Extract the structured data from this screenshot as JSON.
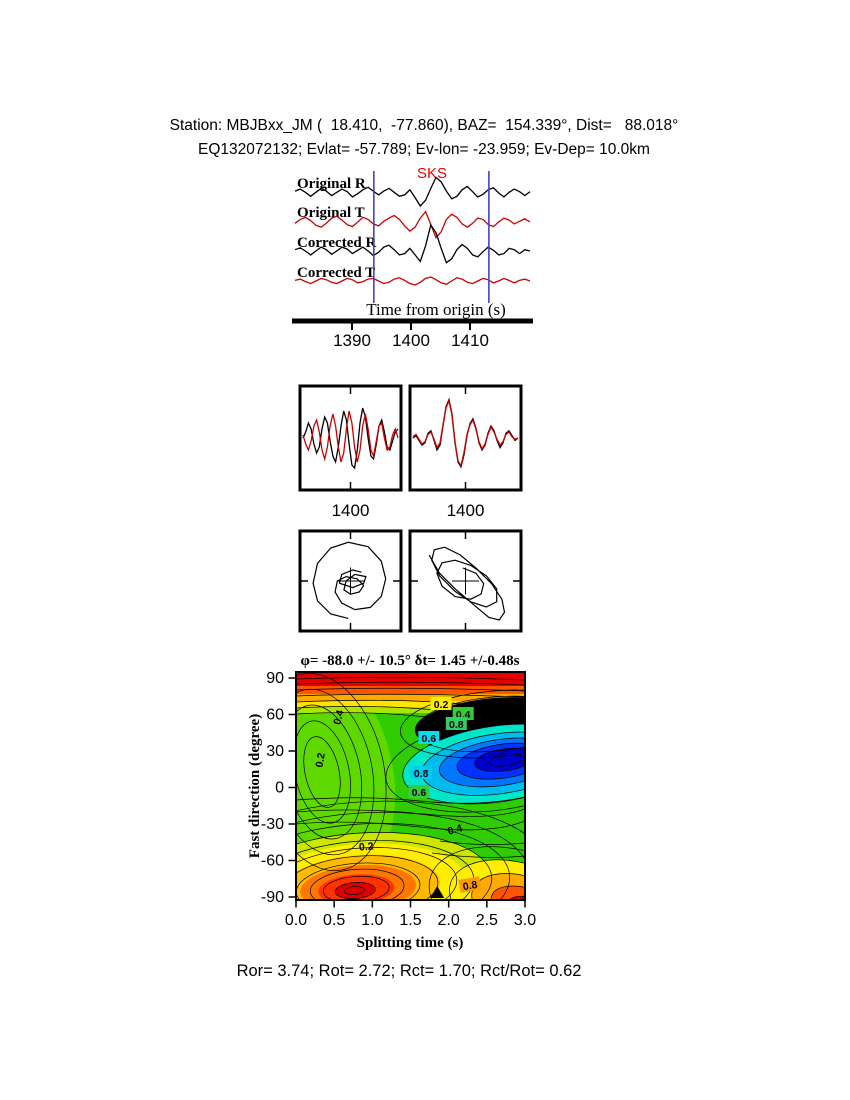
{
  "header": {
    "line1": "Station: MBJBxx_JM (  18.410,  -77.860), BAZ=  154.339°, Dist=   88.018°",
    "line2": "EQ132072132; Evlat= -57.789; Ev-lon= -23.959; Ev-Dep= 10.0km"
  },
  "waveforms": {
    "phase_label": "SKS",
    "trace_labels": [
      "Original R",
      "Original T",
      "Corrected R",
      "Corrected T"
    ],
    "x_label": "Time from origin (s)"
  },
  "contour": {
    "title": "φ= -88.0 +/- 10.5° δt= 1.45 +/-0.48s",
    "x_label": "Splitting time (s)",
    "y_label": "Fast direction (degree)"
  },
  "footer": {
    "text": "Ror= 3.74; Rot= 2.72; Rct= 1.70; Rct/Rot= 0.62"
  },
  "stats": {
    "Ror": 3.74,
    "Rot": 2.72,
    "Rct": 1.7,
    "Rct_over_Rot": 0.62
  },
  "colors": {
    "trace_radial": "#000000",
    "trace_transverse": "#cc0000",
    "window_line": "#4444bb",
    "phase_label": "#ee0000"
  },
  "chart_data": [
    {
      "id": "seismograms",
      "type": "line",
      "xlabel": "Time from origin (s)",
      "x_range": [
        1380.5,
        1420.0
      ],
      "x_ticks": [
        1390,
        1400,
        1410
      ],
      "phase": {
        "label": "SKS",
        "time": 1403.5
      },
      "analysis_window": [
        1393.7,
        1413.2
      ],
      "note": "trace amplitudes are normalized visual estimates",
      "traces": [
        {
          "name": "Original R",
          "color": "#000000",
          "values": [
            0.15,
            0.3,
            0.05,
            -0.25,
            0.05,
            0.35,
            0.15,
            -0.2,
            0.05,
            0.3,
            0.1,
            -0.3,
            -0.05,
            0.25,
            0.45,
            0.15,
            -0.15,
            0.15,
            0.35,
            0.05,
            -0.25,
            -0.15,
            0.25,
            -0.35,
            -1.0,
            -0.55,
            0.35,
            1.2,
            0.85,
            0.15,
            -0.45,
            -0.25,
            0.25,
            0.5,
            0.1,
            -0.3,
            -0.1,
            0.25,
            0.4,
            0.0,
            -0.3,
            0.05,
            0.3,
            0.1,
            -0.2,
            0.1
          ]
        },
        {
          "name": "Original T",
          "color": "#cc0000",
          "values": [
            -0.1,
            0.2,
            0.35,
            0.1,
            -0.25,
            -0.4,
            -0.1,
            0.3,
            0.45,
            0.15,
            -0.2,
            -0.35,
            0.0,
            0.35,
            0.2,
            -0.15,
            -0.3,
            0.05,
            0.3,
            0.5,
            0.2,
            -0.3,
            -0.7,
            -0.4,
            0.3,
            0.8,
            -0.2,
            -1.2,
            -0.75,
            0.2,
            0.6,
            0.35,
            -0.15,
            -0.4,
            -0.1,
            0.3,
            0.2,
            -0.2,
            -0.35,
            0.0,
            0.3,
            0.15,
            -0.15,
            0.05,
            0.25,
            0.0
          ]
        },
        {
          "name": "Corrected R",
          "color": "#000000",
          "values": [
            0.1,
            0.25,
            0.0,
            -0.3,
            0.0,
            0.3,
            0.1,
            -0.25,
            0.0,
            0.3,
            0.15,
            -0.2,
            0.05,
            0.3,
            0.0,
            -0.35,
            -0.1,
            0.3,
            0.45,
            0.1,
            -0.3,
            -0.2,
            0.2,
            -0.3,
            -0.8,
            0.4,
            2.0,
            1.4,
            0.2,
            -0.9,
            -0.6,
            0.1,
            0.5,
            0.2,
            -0.3,
            -0.45,
            -0.05,
            0.3,
            0.05,
            -0.3,
            -0.2,
            0.2,
            0.1,
            -0.2,
            0.1,
            0.0
          ]
        },
        {
          "name": "Corrected T",
          "color": "#cc0000",
          "values": [
            0.05,
            0.15,
            -0.05,
            -0.2,
            0.0,
            0.2,
            0.1,
            -0.1,
            -0.2,
            0.0,
            0.2,
            0.1,
            -0.15,
            -0.05,
            0.15,
            0.2,
            0.0,
            -0.2,
            -0.1,
            0.15,
            0.25,
            0.05,
            -0.2,
            -0.3,
            -0.1,
            0.2,
            0.3,
            0.1,
            -0.15,
            -0.25,
            0.0,
            0.25,
            0.15,
            -0.1,
            -0.2,
            0.0,
            0.2,
            0.1,
            -0.15,
            0.0,
            0.2,
            0.05,
            -0.15,
            0.05,
            0.15,
            0.0
          ]
        }
      ]
    },
    {
      "id": "component-overlays",
      "type": "line",
      "note": "fast/slow component overlays before (left) and after (right) correction",
      "panels": [
        {
          "x_tick": "1400",
          "series": [
            {
              "name": "component-1",
              "color": "#000000",
              "values": [
                0.0,
                0.2,
                0.5,
                0.3,
                -0.2,
                -0.5,
                -0.3,
                0.3,
                0.7,
                0.5,
                -0.1,
                -0.6,
                -0.8,
                -0.3,
                0.4,
                0.9,
                0.6,
                -0.2,
                -0.9,
                -1.0,
                -0.4,
                0.5,
                1.0,
                0.7,
                0.0,
                -0.6,
                -0.7,
                -0.2,
                0.4,
                0.6,
                0.2,
                -0.3,
                -0.4,
                -0.1,
                0.2,
                0.3
              ]
            },
            {
              "name": "component-2",
              "color": "#cc0000",
              "values": [
                0.1,
                -0.2,
                -0.4,
                -0.1,
                0.4,
                0.6,
                0.2,
                -0.4,
                -0.7,
                -0.3,
                0.4,
                0.8,
                0.4,
                -0.3,
                -0.8,
                -0.5,
                0.3,
                0.9,
                0.5,
                -0.3,
                -0.8,
                -0.4,
                0.4,
                0.8,
                0.3,
                -0.4,
                -0.6,
                -0.1,
                0.4,
                0.5,
                0.0,
                -0.4,
                -0.3,
                0.1,
                0.3,
                0.0
              ]
            }
          ]
        },
        {
          "x_tick": "1400",
          "series": [
            {
              "name": "component-1",
              "color": "#000000",
              "values": [
                0.0,
                0.1,
                -0.1,
                -0.3,
                -0.2,
                0.2,
                0.3,
                -0.1,
                -0.5,
                -0.3,
                0.5,
                1.3,
                1.6,
                1.0,
                -0.2,
                -1.0,
                -1.2,
                -0.7,
                0.1,
                0.6,
                0.8,
                0.4,
                -0.2,
                -0.5,
                -0.3,
                0.2,
                0.5,
                0.3,
                -0.1,
                -0.4,
                -0.2,
                0.2,
                0.3,
                0.1,
                -0.1,
                0.0
              ]
            },
            {
              "name": "component-2",
              "color": "#cc0000",
              "values": [
                0.05,
                0.15,
                -0.05,
                -0.25,
                -0.15,
                0.15,
                0.25,
                -0.05,
                -0.4,
                -0.2,
                0.55,
                1.25,
                1.55,
                0.95,
                -0.15,
                -0.95,
                -1.15,
                -0.6,
                0.15,
                0.55,
                0.75,
                0.35,
                -0.15,
                -0.45,
                -0.25,
                0.15,
                0.45,
                0.25,
                -0.05,
                -0.3,
                -0.15,
                0.15,
                0.25,
                0.05,
                -0.05,
                0.0
              ]
            }
          ]
        }
      ]
    },
    {
      "id": "particle-motion",
      "type": "path",
      "note": "particle-motion hodograms before (left) and after (right) correction, normalized coords",
      "panels": [
        {
          "points": [
            [
              -0.05,
              -0.85
            ],
            [
              -0.45,
              -0.75
            ],
            [
              -0.75,
              -0.45
            ],
            [
              -0.85,
              -0.05
            ],
            [
              -0.75,
              0.4
            ],
            [
              -0.45,
              0.75
            ],
            [
              -0.05,
              0.88
            ],
            [
              0.4,
              0.78
            ],
            [
              0.7,
              0.45
            ],
            [
              0.8,
              0.05
            ],
            [
              0.7,
              -0.35
            ],
            [
              0.45,
              -0.6
            ],
            [
              0.1,
              -0.65
            ],
            [
              -0.2,
              -0.5
            ],
            [
              -0.35,
              -0.25
            ],
            [
              -0.3,
              0.0
            ],
            [
              -0.1,
              0.1
            ],
            [
              0.15,
              0.05
            ],
            [
              0.3,
              -0.1
            ],
            [
              0.2,
              -0.25
            ],
            [
              0.0,
              -0.3
            ],
            [
              -0.15,
              -0.2
            ],
            [
              -0.1,
              0.0
            ],
            [
              0.1,
              0.15
            ],
            [
              0.35,
              0.1
            ],
            [
              0.3,
              -0.05
            ],
            [
              0.05,
              -0.15
            ],
            [
              -0.25,
              -0.05
            ],
            [
              -0.2,
              0.15
            ],
            [
              0.05,
              0.25
            ],
            [
              0.25,
              0.2
            ]
          ]
        },
        {
          "points": [
            [
              -0.7,
              0.5
            ],
            [
              -0.5,
              0.15
            ],
            [
              -0.2,
              -0.15
            ],
            [
              0.15,
              -0.45
            ],
            [
              0.45,
              -0.7
            ],
            [
              0.65,
              -0.75
            ],
            [
              0.75,
              -0.6
            ],
            [
              0.7,
              -0.35
            ],
            [
              0.5,
              -0.05
            ],
            [
              0.2,
              0.25
            ],
            [
              -0.1,
              0.5
            ],
            [
              -0.4,
              0.65
            ],
            [
              -0.6,
              0.6
            ],
            [
              -0.65,
              0.4
            ],
            [
              -0.5,
              0.1
            ],
            [
              -0.2,
              -0.2
            ],
            [
              0.1,
              -0.4
            ],
            [
              0.4,
              -0.5
            ],
            [
              0.6,
              -0.4
            ],
            [
              0.6,
              -0.15
            ],
            [
              0.4,
              0.1
            ],
            [
              0.1,
              0.3
            ],
            [
              -0.2,
              0.4
            ],
            [
              -0.45,
              0.35
            ],
            [
              -0.55,
              0.15
            ],
            [
              -0.45,
              -0.1
            ],
            [
              -0.2,
              -0.3
            ],
            [
              0.1,
              -0.35
            ],
            [
              0.3,
              -0.25
            ],
            [
              0.35,
              -0.05
            ],
            [
              0.2,
              0.15
            ],
            [
              -0.05,
              0.25
            ]
          ]
        }
      ]
    },
    {
      "id": "error-surface",
      "type": "contour",
      "xlabel": "Splitting time (s)",
      "ylabel": "Fast direction (degree)",
      "x_range": [
        0,
        3
      ],
      "y_range": [
        -90,
        90
      ],
      "x_ticks": [
        "0.0",
        "0.5",
        "1.0",
        "1.5",
        "2.0",
        "2.5",
        "3.0"
      ],
      "y_ticks": [
        90,
        60,
        30,
        0,
        -30,
        -60,
        -90
      ],
      "best_fit": {
        "phi_deg": -88.0,
        "phi_err_deg": 10.5,
        "dt_s": 1.45,
        "dt_err_s": 0.48
      },
      "marker": {
        "dt": 1.85,
        "phi": -90
      },
      "contour_levels": [
        0.2,
        0.4,
        0.6,
        0.8
      ],
      "level_labels": [
        {
          "level": "0.2",
          "dt": 1.9,
          "phi": 68.6,
          "bg": "#ffee00",
          "rot": 0
        },
        {
          "level": "0.4",
          "dt": 2.19,
          "phi": 60.4,
          "bg": "#33cc33",
          "rot": 0
        },
        {
          "level": "0.8",
          "dt": 2.1,
          "phi": 52.2,
          "bg": "#33cc66",
          "rot": 0
        },
        {
          "level": "0.6",
          "dt": 1.74,
          "phi": 40.7,
          "bg": "#00ddee",
          "rot": 0
        },
        {
          "level": "0.8",
          "dt": 1.64,
          "phi": 11.9,
          "bg": "#00ccee",
          "rot": 0
        },
        {
          "level": "0.6",
          "dt": 1.61,
          "phi": -3.7,
          "bg": "#33cc44",
          "rot": 0
        },
        {
          "level": "0.4",
          "dt": 0.55,
          "phi": 57.9,
          "bg": "",
          "rot": -75
        },
        {
          "level": "0.2",
          "dt": 0.31,
          "phi": 22.6,
          "bg": "",
          "rot": -80
        },
        {
          "level": "0.4",
          "dt": 2.08,
          "phi": -34.1,
          "bg": "",
          "rot": -15
        },
        {
          "level": "0.2",
          "dt": 0.92,
          "phi": -48.1,
          "bg": "",
          "rot": -5
        },
        {
          "level": "0.8",
          "dt": 2.28,
          "phi": -80.2,
          "bg": "#ff9900",
          "rot": -10
        }
      ]
    }
  ]
}
